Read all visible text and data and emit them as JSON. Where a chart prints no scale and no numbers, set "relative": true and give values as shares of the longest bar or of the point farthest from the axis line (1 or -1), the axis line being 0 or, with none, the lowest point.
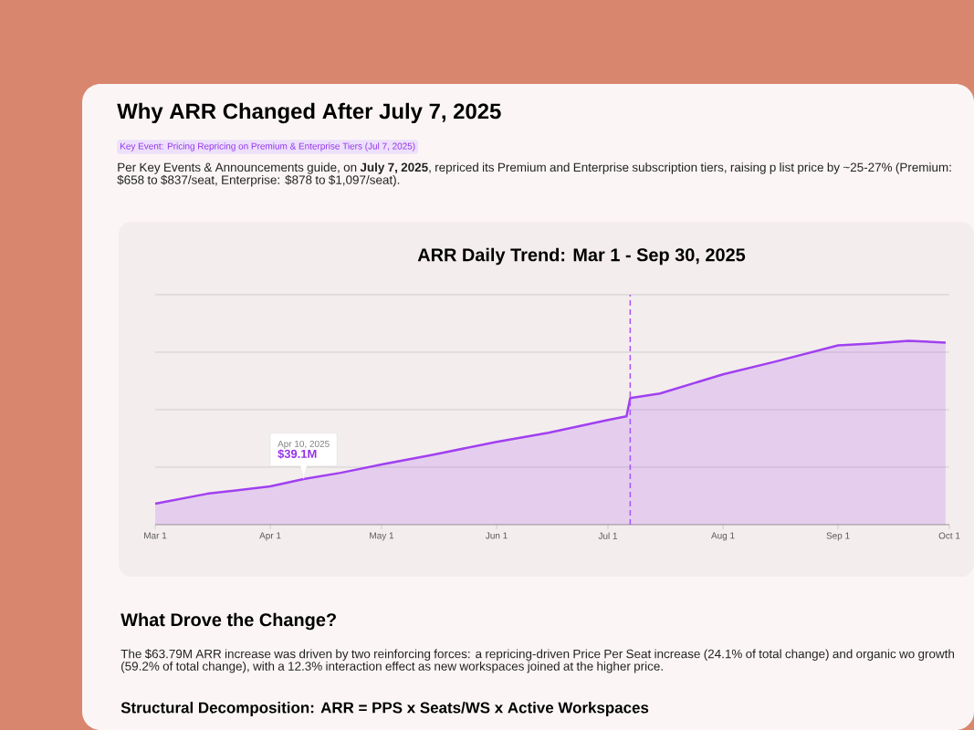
{
  "chart_data": {
    "type": "area",
    "title": "ARR Daily Trend: Mar 1 - Sep 30, 2025",
    "relative": true,
    "x": [
      "2025-03-01",
      "2025-03-15",
      "2025-04-01",
      "2025-04-10",
      "2025-04-20",
      "2025-05-01",
      "2025-05-15",
      "2025-06-01",
      "2025-06-15",
      "2025-07-01",
      "2025-07-06",
      "2025-07-07",
      "2025-07-15",
      "2025-08-01",
      "2025-08-15",
      "2025-09-01",
      "2025-09-10",
      "2025-09-20",
      "2025-09-30"
    ],
    "series": [
      {
        "color": "#a040f0",
        "values": [
          0.114,
          0.168,
          0.208,
          0.248,
          0.282,
          0.327,
          0.381,
          0.45,
          0.5,
          0.569,
          0.589,
          0.688,
          0.713,
          0.817,
          0.886,
          0.975,
          0.985,
          1,
          0.99
        ]
      }
    ],
    "xlim": [
      "2025-03-01",
      "2025-10-01"
    ],
    "xticks": [
      {
        "value": "2025-03-01",
        "label": "Mar 1"
      },
      {
        "value": "2025-04-01",
        "label": "Apr 1"
      },
      {
        "value": "2025-05-01",
        "label": "May 1"
      },
      {
        "value": "2025-06-01",
        "label": "Jun 1"
      },
      {
        "value": "2025-07-01",
        "label": "Jul 1"
      },
      {
        "value": "2025-08-01",
        "label": "Aug 1"
      },
      {
        "value": "2025-09-01",
        "label": "Sep 1"
      },
      {
        "value": "2025-10-01",
        "label": "Oct 1"
      }
    ],
    "grid": "y",
    "ref_lines": [
      {
        "axis": "x",
        "value": "2025-07-07",
        "color": "#a855f7",
        "line_style": "dashed"
      }
    ],
    "annotations": [
      "Why ARR Changed After July 7, 2025",
      "Key Event: Pricing Repricing on Premium & Enterprise Tiers (Jul 7, 2025)",
      "Per Key Events & Announcements guide, on **July 7, 2025**, repriced its Premium and Enterprise subscription tiers, raising p list price by ~25-27% (Premium: $658 to $837/seat, Enterprise: $878 to $1,097/seat).",
      "What Drove the Change?",
      "The $63.79M ARR increase was driven by two reinforcing forces: a repricing-driven Price Per Seat increase (24.1% of total change) and organic wo growth (59.2% of total change), with a 12.3% interaction effect as new workspaces joined at the higher price.",
      "Structural Decomposition: ARR = PPS x Seats/WS x Active Workspaces",
      "Apr 10, 2025",
      {
        "text": "$39.1M",
        "x": "2025-04-10",
        "y": 0.248
      }
    ]
  }
}
